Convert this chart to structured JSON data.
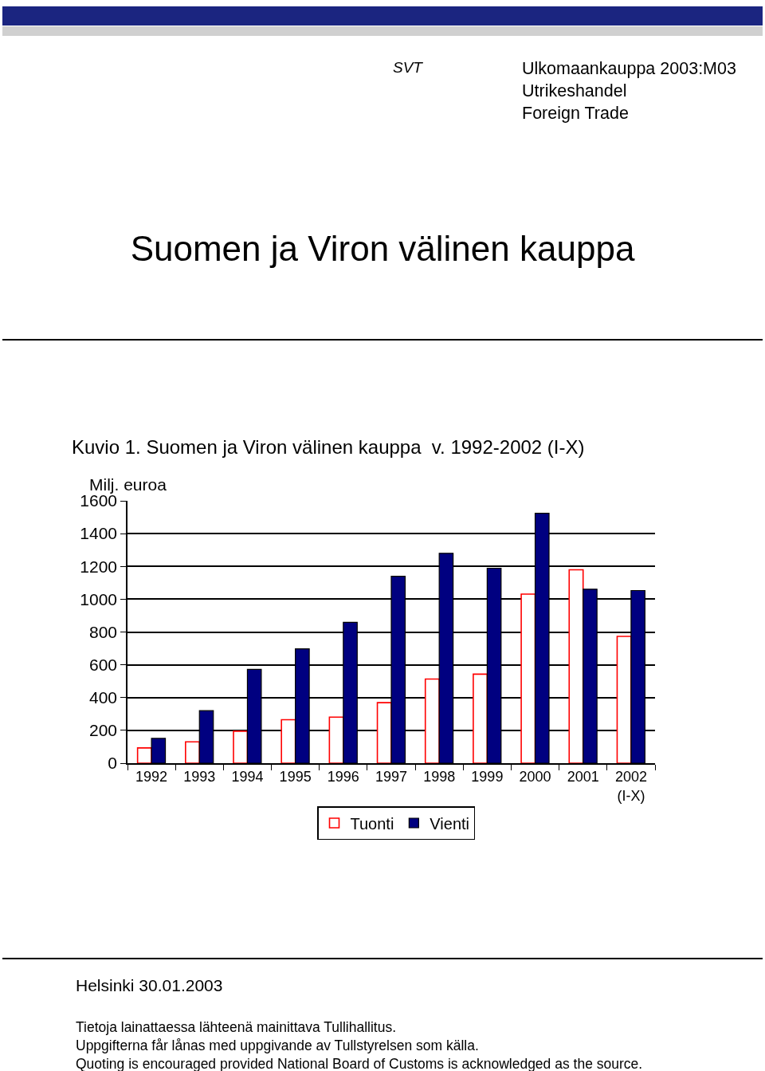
{
  "chart_data": {
    "type": "bar",
    "title": "Suomen ja Viron välinen kauppa",
    "subtitle": "Kuvio 1. Suomen ja Viron välinen kauppa  v. 1992-2002 (I-X)",
    "ylabel": "Milj. euroa",
    "annotations": [
      "SVT",
      "Ulkomaankauppa 2003:M03\nUtrikeshandel\nForeign Trade",
      "Helsinki 30.01.2003",
      "Tietoja lainattaessa lähteenä mainittava Tullihallitus.\nUppgifterna får lånas med uppgivande av Tullstyrelsen som källa.\nQuoting is encouraged provided National Board of Customs is acknowledged as the source."
    ],
    "categories": [
      "1992",
      "1993",
      "1994",
      "1995",
      "1996",
      "1997",
      "1998",
      "1999",
      "2000",
      "2001",
      "2002\n(I-X)"
    ],
    "series": [
      {
        "name": "Tuonti",
        "color": "#ff0000",
        "values": [
          93,
          130,
          195,
          265,
          281,
          369,
          513,
          543,
          1031,
          1179,
          773
        ]
      },
      {
        "name": "Vienti",
        "color": "#000080",
        "values": [
          151,
          320,
          572,
          697,
          859,
          1140,
          1280,
          1189,
          1524,
          1061,
          1053
        ]
      }
    ],
    "ylim": [
      0,
      1600
    ],
    "yticks": [
      0,
      200,
      400,
      600,
      800,
      1000,
      1200,
      1400,
      1600
    ],
    "grid": "y",
    "legend": "bottom"
  }
}
